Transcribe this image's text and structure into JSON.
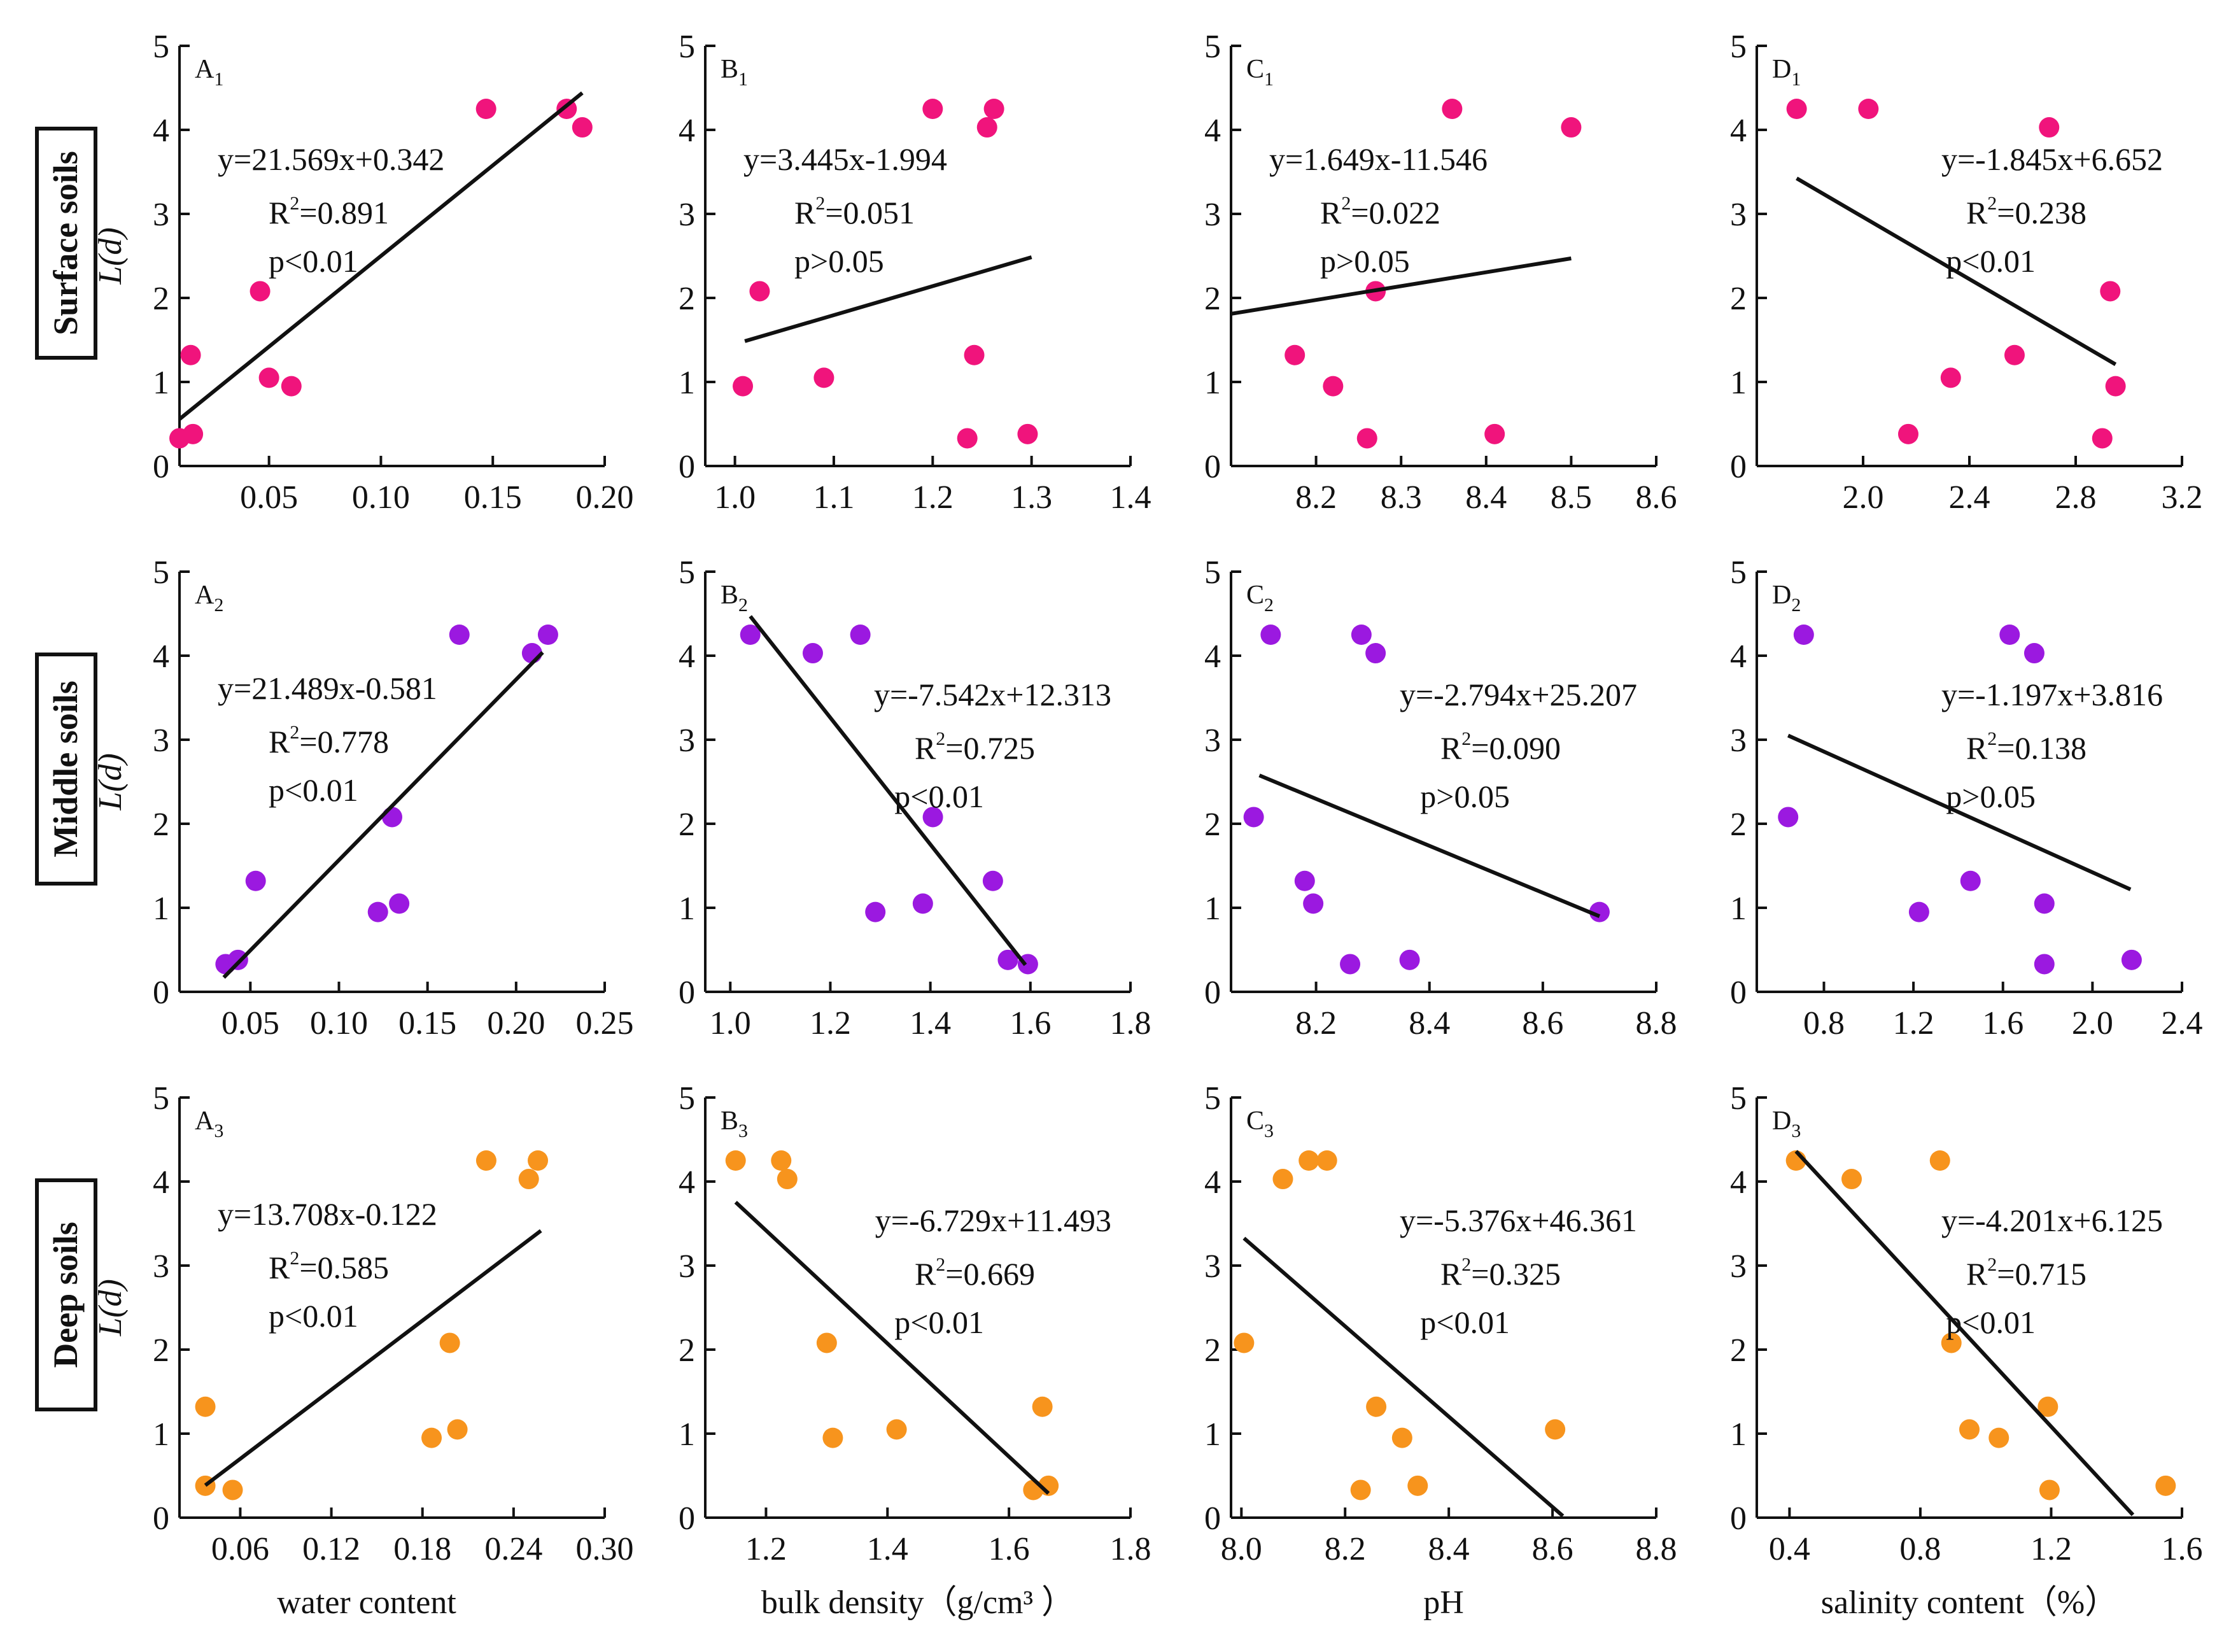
{
  "figure": {
    "y_axis_label": "L(d)",
    "row_labels": [
      "Surface soils",
      "Middle soils",
      "Deep soils"
    ],
    "x_axis_labels": [
      "water content",
      "bulk density（g/cm³ ）",
      "pH",
      "salinity content（%）"
    ],
    "colors": {
      "surface": "#f0147c",
      "middle": "#9b19e0",
      "deep": "#f7941d",
      "line": "#111111"
    }
  },
  "chart_data": [
    {
      "id": "A1",
      "letter": "A",
      "sub": "1",
      "row": 0,
      "col": 0,
      "type": "scatter",
      "xlim": [
        0.01,
        0.2
      ],
      "xticks": [
        0.05,
        0.1,
        0.15,
        0.2
      ],
      "xtick_labels": [
        "0.05",
        "0.10",
        "0.15",
        "0.20"
      ],
      "ylim": [
        0,
        5
      ],
      "yticks": [
        0,
        1,
        2,
        3,
        4,
        5
      ],
      "ytick_labels": [
        "0",
        "1",
        "2",
        "3",
        "4",
        "5"
      ],
      "points": [
        [
          0.01,
          0.33
        ],
        [
          0.016,
          0.38
        ],
        [
          0.015,
          1.32
        ],
        [
          0.046,
          2.08
        ],
        [
          0.05,
          1.05
        ],
        [
          0.06,
          0.95
        ],
        [
          0.147,
          4.25
        ],
        [
          0.183,
          4.25
        ],
        [
          0.19,
          4.03
        ]
      ],
      "fit": {
        "slope": 21.569,
        "intercept": 0.342,
        "x_range": [
          0.01,
          0.19
        ]
      },
      "equation": "y=21.569x+0.342",
      "r2_label": "R",
      "r2_value": "=0.891",
      "p_label": "p<0.01"
    },
    {
      "id": "B1",
      "letter": "B",
      "sub": "1",
      "row": 0,
      "col": 1,
      "type": "scatter",
      "xlim": [
        0.97,
        1.4
      ],
      "xticks": [
        1.0,
        1.1,
        1.2,
        1.3,
        1.4
      ],
      "xtick_labels": [
        "1.0",
        "1.1",
        "1.2",
        "1.3",
        "1.4"
      ],
      "ylim": [
        0,
        5
      ],
      "yticks": [
        0,
        1,
        2,
        3,
        4,
        5
      ],
      "ytick_labels": [
        "0",
        "1",
        "2",
        "3",
        "4",
        "5"
      ],
      "points": [
        [
          1.008,
          0.95
        ],
        [
          1.025,
          2.08
        ],
        [
          1.09,
          1.05
        ],
        [
          1.2,
          4.25
        ],
        [
          1.235,
          0.33
        ],
        [
          1.242,
          1.32
        ],
        [
          1.255,
          4.03
        ],
        [
          1.262,
          4.25
        ],
        [
          1.296,
          0.38
        ]
      ],
      "fit": {
        "slope": 3.445,
        "intercept": -1.994,
        "x_range": [
          1.01,
          1.3
        ]
      },
      "equation": "y=3.445x-1.994",
      "r2_label": "R",
      "r2_value": "=0.051",
      "p_label": "p>0.05"
    },
    {
      "id": "C1",
      "letter": "C",
      "sub": "1",
      "row": 0,
      "col": 2,
      "type": "scatter",
      "xlim": [
        8.1,
        8.6
      ],
      "xticks": [
        8.2,
        8.3,
        8.4,
        8.5,
        8.6
      ],
      "xtick_labels": [
        "8.2",
        "8.3",
        "8.4",
        "8.5",
        "8.6"
      ],
      "ylim": [
        0,
        5
      ],
      "yticks": [
        0,
        1,
        2,
        3,
        4,
        5
      ],
      "ytick_labels": [
        "0",
        "1",
        "2",
        "3",
        "4",
        "5"
      ],
      "points": [
        [
          8.175,
          1.32
        ],
        [
          8.22,
          0.95
        ],
        [
          8.26,
          0.33
        ],
        [
          8.27,
          2.08
        ],
        [
          8.36,
          4.25
        ],
        [
          8.41,
          0.38
        ],
        [
          8.5,
          4.03
        ]
      ],
      "fit": {
        "slope": 1.649,
        "intercept": -11.546,
        "x_range": [
          8.1,
          8.5
        ]
      },
      "equation": "y=1.649x-11.546",
      "r2_label": "R",
      "r2_value": "=0.022",
      "p_label": "p>0.05"
    },
    {
      "id": "D1",
      "letter": "D",
      "sub": "1",
      "row": 0,
      "col": 3,
      "type": "scatter",
      "xlim": [
        1.6,
        3.2
      ],
      "xticks": [
        2.0,
        2.4,
        2.8,
        3.2
      ],
      "xtick_labels": [
        "2.0",
        "2.4",
        "2.8",
        "3.2"
      ],
      "ylim": [
        0,
        5
      ],
      "yticks": [
        0,
        1,
        2,
        3,
        4,
        5
      ],
      "ytick_labels": [
        "0",
        "1",
        "2",
        "3",
        "4",
        "5"
      ],
      "points": [
        [
          1.75,
          4.25
        ],
        [
          2.02,
          4.25
        ],
        [
          2.17,
          0.38
        ],
        [
          2.33,
          1.05
        ],
        [
          2.57,
          1.32
        ],
        [
          2.7,
          4.03
        ],
        [
          2.9,
          0.33
        ],
        [
          2.93,
          2.08
        ],
        [
          2.95,
          0.95
        ]
      ],
      "fit": {
        "slope": -1.845,
        "intercept": 6.652,
        "x_range": [
          1.75,
          2.95
        ]
      },
      "equation": "y=-1.845x+6.652",
      "r2_label": "R",
      "r2_value": "=0.238",
      "p_label": "p<0.01"
    },
    {
      "id": "A2",
      "letter": "A",
      "sub": "2",
      "row": 1,
      "col": 0,
      "type": "scatter",
      "xlim": [
        0.01,
        0.25
      ],
      "xticks": [
        0.05,
        0.1,
        0.15,
        0.2,
        0.25
      ],
      "xtick_labels": [
        "0.05",
        "0.10",
        "0.15",
        "0.20",
        "0.25"
      ],
      "ylim": [
        0,
        5
      ],
      "yticks": [
        0,
        1,
        2,
        3,
        4,
        5
      ],
      "ytick_labels": [
        "0",
        "1",
        "2",
        "3",
        "4",
        "5"
      ],
      "points": [
        [
          0.036,
          0.33
        ],
        [
          0.043,
          0.38
        ],
        [
          0.053,
          1.32
        ],
        [
          0.122,
          0.95
        ],
        [
          0.13,
          2.08
        ],
        [
          0.134,
          1.05
        ],
        [
          0.168,
          4.25
        ],
        [
          0.209,
          4.03
        ],
        [
          0.218,
          4.25
        ]
      ],
      "fit": {
        "slope": 21.489,
        "intercept": -0.581,
        "x_range": [
          0.035,
          0.215
        ]
      },
      "equation": "y=21.489x-0.581",
      "r2_label": "R",
      "r2_value": "=0.778",
      "p_label": "p<0.01"
    },
    {
      "id": "B2",
      "letter": "B",
      "sub": "2",
      "row": 1,
      "col": 1,
      "type": "scatter",
      "xlim": [
        0.95,
        1.8
      ],
      "xticks": [
        1.0,
        1.2,
        1.4,
        1.6,
        1.8
      ],
      "xtick_labels": [
        "1.0",
        "1.2",
        "1.4",
        "1.6",
        "1.8"
      ],
      "ylim": [
        0,
        5
      ],
      "yticks": [
        0,
        1,
        2,
        3,
        4,
        5
      ],
      "ytick_labels": [
        "0",
        "1",
        "2",
        "3",
        "4",
        "5"
      ],
      "points": [
        [
          1.04,
          4.25
        ],
        [
          1.165,
          4.03
        ],
        [
          1.26,
          4.25
        ],
        [
          1.29,
          0.95
        ],
        [
          1.385,
          1.05
        ],
        [
          1.405,
          2.08
        ],
        [
          1.525,
          1.32
        ],
        [
          1.555,
          0.38
        ],
        [
          1.595,
          0.33
        ]
      ],
      "fit": {
        "slope": -7.542,
        "intercept": 12.313,
        "x_range": [
          1.04,
          1.59
        ]
      },
      "equation": "y=-7.542x+12.313",
      "r2_label": "R",
      "r2_value": "=0.725",
      "p_label": "p<0.01"
    },
    {
      "id": "C2",
      "letter": "C",
      "sub": "2",
      "row": 1,
      "col": 2,
      "type": "scatter",
      "xlim": [
        8.05,
        8.8
      ],
      "xticks": [
        8.2,
        8.4,
        8.6,
        8.8
      ],
      "xtick_labels": [
        "8.2",
        "8.4",
        "8.6",
        "8.8"
      ],
      "ylim": [
        0,
        5
      ],
      "yticks": [
        0,
        1,
        2,
        3,
        4,
        5
      ],
      "ytick_labels": [
        "0",
        "1",
        "2",
        "3",
        "4",
        "5"
      ],
      "points": [
        [
          8.09,
          2.08
        ],
        [
          8.12,
          4.25
        ],
        [
          8.18,
          1.32
        ],
        [
          8.195,
          1.05
        ],
        [
          8.26,
          0.33
        ],
        [
          8.28,
          4.25
        ],
        [
          8.305,
          4.03
        ],
        [
          8.365,
          0.38
        ],
        [
          8.7,
          0.95
        ]
      ],
      "fit": {
        "slope": -2.794,
        "intercept": 25.207,
        "x_range": [
          8.1,
          8.7
        ]
      },
      "equation": "y=-2.794x+25.207",
      "r2_label": "R",
      "r2_value": "=0.090",
      "p_label": "p>0.05"
    },
    {
      "id": "D2",
      "letter": "D",
      "sub": "2",
      "row": 1,
      "col": 3,
      "type": "scatter",
      "xlim": [
        0.5,
        2.4
      ],
      "xticks": [
        0.8,
        1.2,
        1.6,
        2.0,
        2.4
      ],
      "xtick_labels": [
        "0.8",
        "1.2",
        "1.6",
        "2.0",
        "2.4"
      ],
      "ylim": [
        0,
        5
      ],
      "yticks": [
        0,
        1,
        2,
        3,
        4,
        5
      ],
      "ytick_labels": [
        "0",
        "1",
        "2",
        "3",
        "4",
        "5"
      ],
      "points": [
        [
          0.64,
          2.08
        ],
        [
          0.71,
          4.25
        ],
        [
          1.225,
          0.95
        ],
        [
          1.455,
          1.32
        ],
        [
          1.63,
          4.25
        ],
        [
          1.74,
          4.03
        ],
        [
          1.785,
          1.05
        ],
        [
          1.785,
          0.33
        ],
        [
          2.175,
          0.38
        ]
      ],
      "fit": {
        "slope": -1.197,
        "intercept": 3.816,
        "x_range": [
          0.64,
          2.17
        ]
      },
      "equation": "y=-1.197x+3.816",
      "r2_label": "R",
      "r2_value": "=0.138",
      "p_label": "p>0.05"
    },
    {
      "id": "A3",
      "letter": "A",
      "sub": "3",
      "row": 2,
      "col": 0,
      "type": "scatter",
      "xlim": [
        0.02,
        0.3
      ],
      "xticks": [
        0.06,
        0.12,
        0.18,
        0.24,
        0.3
      ],
      "xtick_labels": [
        "0.06",
        "0.12",
        "0.18",
        "0.24",
        "0.30"
      ],
      "ylim": [
        0,
        5
      ],
      "yticks": [
        0,
        1,
        2,
        3,
        4,
        5
      ],
      "ytick_labels": [
        "0",
        "1",
        "2",
        "3",
        "4",
        "5"
      ],
      "points": [
        [
          0.037,
          1.32
        ],
        [
          0.037,
          0.38
        ],
        [
          0.055,
          0.33
        ],
        [
          0.186,
          0.95
        ],
        [
          0.198,
          2.08
        ],
        [
          0.203,
          1.05
        ],
        [
          0.222,
          4.25
        ],
        [
          0.25,
          4.03
        ],
        [
          0.256,
          4.25
        ]
      ],
      "fit": {
        "slope": 13.708,
        "intercept": -0.122,
        "x_range": [
          0.037,
          0.258
        ]
      },
      "equation": "y=13.708x-0.122",
      "r2_label": "R",
      "r2_value": "=0.585",
      "p_label": "p<0.01"
    },
    {
      "id": "B3",
      "letter": "B",
      "sub": "3",
      "row": 2,
      "col": 1,
      "type": "scatter",
      "xlim": [
        1.1,
        1.8
      ],
      "xticks": [
        1.2,
        1.4,
        1.6,
        1.8
      ],
      "xtick_labels": [
        "1.2",
        "1.4",
        "1.6",
        "1.8"
      ],
      "ylim": [
        0,
        5
      ],
      "yticks": [
        0,
        1,
        2,
        3,
        4,
        5
      ],
      "ytick_labels": [
        "0",
        "1",
        "2",
        "3",
        "4",
        "5"
      ],
      "points": [
        [
          1.15,
          4.25
        ],
        [
          1.225,
          4.25
        ],
        [
          1.235,
          4.03
        ],
        [
          1.3,
          2.08
        ],
        [
          1.31,
          0.95
        ],
        [
          1.415,
          1.05
        ],
        [
          1.64,
          0.33
        ],
        [
          1.655,
          1.32
        ],
        [
          1.665,
          0.38
        ]
      ],
      "fit": {
        "slope": -6.729,
        "intercept": 11.493,
        "x_range": [
          1.15,
          1.665
        ]
      },
      "equation": "y=-6.729x+11.493",
      "r2_label": "R",
      "r2_value": "=0.669",
      "p_label": "p<0.01"
    },
    {
      "id": "C3",
      "letter": "C",
      "sub": "3",
      "row": 2,
      "col": 2,
      "type": "scatter",
      "xlim": [
        7.98,
        8.8
      ],
      "xticks": [
        8.0,
        8.2,
        8.4,
        8.6,
        8.8
      ],
      "xtick_labels": [
        "8.0",
        "8.2",
        "8.4",
        "8.6",
        "8.8"
      ],
      "ylim": [
        0,
        5
      ],
      "yticks": [
        0,
        1,
        2,
        3,
        4,
        5
      ],
      "ytick_labels": [
        "0",
        "1",
        "2",
        "3",
        "4",
        "5"
      ],
      "points": [
        [
          8.005,
          2.08
        ],
        [
          8.08,
          4.03
        ],
        [
          8.13,
          4.25
        ],
        [
          8.165,
          4.25
        ],
        [
          8.23,
          0.33
        ],
        [
          8.26,
          1.32
        ],
        [
          8.31,
          0.95
        ],
        [
          8.34,
          0.38
        ],
        [
          8.605,
          1.05
        ]
      ],
      "fit": {
        "slope": -5.376,
        "intercept": 46.361,
        "x_range": [
          8.005,
          8.62
        ]
      },
      "equation": "y=-5.376x+46.361",
      "r2_label": "R",
      "r2_value": "=0.325",
      "p_label": "p<0.01"
    },
    {
      "id": "D3",
      "letter": "D",
      "sub": "3",
      "row": 2,
      "col": 3,
      "type": "scatter",
      "xlim": [
        0.3,
        1.6
      ],
      "xticks": [
        0.4,
        0.8,
        1.2,
        1.6
      ],
      "xtick_labels": [
        "0.4",
        "0.8",
        "1.2",
        "1.6"
      ],
      "ylim": [
        0,
        5
      ],
      "yticks": [
        0,
        1,
        2,
        3,
        4,
        5
      ],
      "ytick_labels": [
        "0",
        "1",
        "2",
        "3",
        "4",
        "5"
      ],
      "points": [
        [
          0.42,
          4.25
        ],
        [
          0.59,
          4.03
        ],
        [
          0.86,
          4.25
        ],
        [
          0.895,
          2.08
        ],
        [
          0.95,
          1.05
        ],
        [
          1.04,
          0.95
        ],
        [
          1.19,
          1.32
        ],
        [
          1.195,
          0.33
        ],
        [
          1.55,
          0.38
        ]
      ],
      "fit": {
        "slope": -4.201,
        "intercept": 6.125,
        "x_range": [
          0.42,
          1.45
        ]
      },
      "equation": "y=-4.201x+6.125",
      "r2_label": "R",
      "r2_value": "=0.715",
      "p_label": "p<0.01"
    }
  ]
}
